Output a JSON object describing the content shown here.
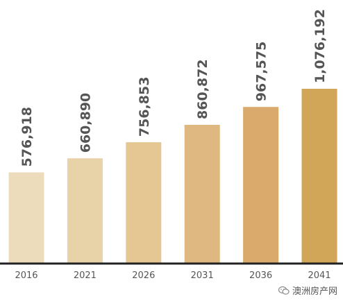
{
  "chart_data": {
    "type": "bar",
    "categories": [
      "2016",
      "2021",
      "2026",
      "2031",
      "2036",
      "2041"
    ],
    "values": [
      576918,
      660890,
      756853,
      860872,
      967575,
      1076192
    ],
    "data_labels": [
      "576,918",
      "660,890",
      "756,853",
      "860,872",
      "967,575",
      "1,076,192"
    ],
    "title": "",
    "xlabel": "",
    "ylabel": "",
    "grid": false,
    "legend": "none",
    "colors": [
      "#ecdcbc",
      "#e8d3a8",
      "#e4c793",
      "#deb880",
      "#d9aa6b",
      "#d1a658"
    ],
    "axis_color": "#222222",
    "label_color": "#555555"
  },
  "watermark": {
    "icon": "wechat-icon",
    "text": "澳洲房产网"
  }
}
